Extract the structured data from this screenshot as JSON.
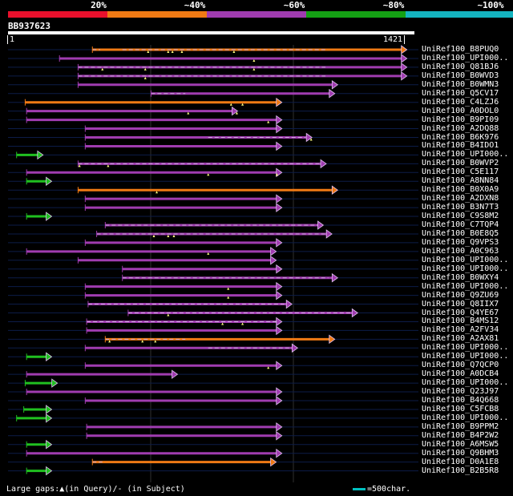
{
  "legend": {
    "labels": [
      "20%",
      "~40%",
      "~60%",
      "~80%",
      "~100%"
    ],
    "colors": [
      "#e8102c",
      "#f07a14",
      "#a03cb0",
      "#14a014",
      "#14b4c0"
    ]
  },
  "query": {
    "id": "BB937623",
    "start": "1",
    "end": "1421",
    "length": 1421
  },
  "hits": [
    {
      "label": "UniRef100_B8PUQ0",
      "color": "orange",
      "start": 295,
      "end": 1392,
      "gaps": [
        [
          295,
          322
        ],
        [
          400,
          1110
        ]
      ],
      "marks": [
        490,
        560,
        575,
        608,
        790
      ]
    },
    {
      "label": "UniRef100_UPI000..",
      "color": "purple",
      "start": 180,
      "end": 1392,
      "gaps": [],
      "marks": [
        860
      ]
    },
    {
      "label": "UniRef100_Q81BJ6",
      "color": "purple",
      "start": 245,
      "end": 1392,
      "gaps": [
        [
          245,
          1110
        ]
      ],
      "marks": [
        330,
        480,
        860
      ]
    },
    {
      "label": "UniRef100_B0WVD3",
      "color": "purple",
      "start": 245,
      "end": 1392,
      "gaps": [
        [
          245,
          1110
        ]
      ],
      "marks": [
        480
      ]
    },
    {
      "label": "UniRef100_B0WMN3",
      "color": "purple",
      "start": 245,
      "end": 1150,
      "gaps": [],
      "marks": []
    },
    {
      "label": "UniRef100_Q5CV17",
      "color": "purple",
      "start": 500,
      "end": 1140,
      "gaps": [
        [
          500,
          620
        ]
      ],
      "marks": []
    },
    {
      "label": "UniRef100_C4LZJ6",
      "color": "orange",
      "start": 60,
      "end": 955,
      "gaps": [],
      "marks": [
        780,
        820
      ]
    },
    {
      "label": "UniRef100_A0DOL0",
      "color": "purple",
      "start": 65,
      "end": 800,
      "gaps": [],
      "marks": [
        630,
        800
      ]
    },
    {
      "label": "UniRef100_B9PI09",
      "color": "purple",
      "start": 65,
      "end": 955,
      "gaps": [],
      "marks": [
        910
      ]
    },
    {
      "label": "UniRef100_A2DQ88",
      "color": "purple",
      "start": 270,
      "end": 955,
      "gaps": [],
      "marks": []
    },
    {
      "label": "UniRef100_B6K976",
      "color": "purple",
      "start": 270,
      "end": 1060,
      "gaps": [
        [
          700,
          1040
        ]
      ],
      "marks": [
        1060
      ]
    },
    {
      "label": "UniRef100_B4IDO1",
      "color": "purple",
      "start": 270,
      "end": 955,
      "gaps": [],
      "marks": []
    },
    {
      "label": "UniRef100_UPI000..",
      "color": "green",
      "start": 30,
      "end": 120,
      "gaps": [],
      "marks": []
    },
    {
      "label": "UniRef100_B0WVP2",
      "color": "purple",
      "start": 245,
      "end": 1110,
      "gaps": [
        [
          245,
          1110
        ]
      ],
      "marks": [
        250,
        350
      ]
    },
    {
      "label": "UniRef100_C5E117",
      "color": "purple",
      "start": 65,
      "end": 955,
      "gaps": [],
      "marks": [
        700,
        940
      ]
    },
    {
      "label": "UniRef100_A8NN84",
      "color": "green",
      "start": 65,
      "end": 150,
      "gaps": [],
      "marks": []
    },
    {
      "label": "UniRef100_B0X0A9",
      "color": "orange",
      "start": 245,
      "end": 1150,
      "gaps": [],
      "marks": [
        520
      ]
    },
    {
      "label": "UniRef100_A2DXN8",
      "color": "purple",
      "start": 270,
      "end": 955,
      "gaps": [],
      "marks": []
    },
    {
      "label": "UniRef100_B3N7T3",
      "color": "purple",
      "start": 270,
      "end": 955,
      "gaps": [],
      "marks": []
    },
    {
      "label": "UniRef100_C9S8M2",
      "color": "green",
      "start": 65,
      "end": 150,
      "gaps": [],
      "marks": []
    },
    {
      "label": "UniRef100_C7TQP4",
      "color": "purple",
      "start": 340,
      "end": 1100,
      "gaps": [
        [
          340,
          1100
        ]
      ],
      "marks": []
    },
    {
      "label": "UniRef100_B0E8Q5",
      "color": "purple",
      "start": 310,
      "end": 1130,
      "gaps": [
        [
          310,
          1130
        ]
      ],
      "marks": [
        510,
        560,
        580
      ]
    },
    {
      "label": "UniRef100_Q9VPS3",
      "color": "purple",
      "start": 270,
      "end": 955,
      "gaps": [],
      "marks": []
    },
    {
      "label": "UniRef100_A0C963",
      "color": "purple",
      "start": 65,
      "end": 935,
      "gaps": [],
      "marks": [
        700
      ]
    },
    {
      "label": "UniRef100_UPI000..",
      "color": "purple",
      "start": 245,
      "end": 935,
      "gaps": [],
      "marks": []
    },
    {
      "label": "UniRef100_UPI000..",
      "color": "purple",
      "start": 400,
      "end": 955,
      "gaps": [],
      "marks": []
    },
    {
      "label": "UniRef100_B0WXY4",
      "color": "purple",
      "start": 400,
      "end": 1150,
      "gaps": [
        [
          400,
          1120
        ]
      ],
      "marks": []
    },
    {
      "label": "UniRef100_UPI000..",
      "color": "purple",
      "start": 270,
      "end": 955,
      "gaps": [],
      "marks": [
        770
      ]
    },
    {
      "label": "UniRef100_Q9ZU69",
      "color": "purple",
      "start": 270,
      "end": 955,
      "gaps": [],
      "marks": [
        770
      ]
    },
    {
      "label": "UniRef100_Q8IIX7",
      "color": "purple",
      "start": 280,
      "end": 990,
      "gaps": [
        [
          280,
          990
        ]
      ],
      "marks": []
    },
    {
      "label": "UniRef100_Q4YE67",
      "color": "purple",
      "start": 420,
      "end": 1220,
      "gaps": [
        [
          420,
          1200
        ]
      ],
      "marks": [
        560
      ]
    },
    {
      "label": "UniRef100_B4MS12",
      "color": "purple",
      "start": 275,
      "end": 955,
      "gaps": [
        [
          275,
          955
        ]
      ],
      "marks": [
        750,
        820
      ]
    },
    {
      "label": "UniRef100_A2FV34",
      "color": "purple",
      "start": 275,
      "end": 955,
      "gaps": [],
      "marks": []
    },
    {
      "label": "UniRef100_A2AX81",
      "color": "orange",
      "start": 340,
      "end": 1140,
      "gaps": [
        [
          340,
          620
        ]
      ],
      "marks": [
        355,
        470,
        515
      ]
    },
    {
      "label": "UniRef100_UPI000..",
      "color": "purple",
      "start": 270,
      "end": 1010,
      "gaps": [
        [
          700,
          1010
        ]
      ],
      "marks": []
    },
    {
      "label": "UniRef100_UPI000..",
      "color": "green",
      "start": 65,
      "end": 150,
      "gaps": [],
      "marks": []
    },
    {
      "label": "UniRef100_Q7QCP0",
      "color": "purple",
      "start": 270,
      "end": 955,
      "gaps": [],
      "marks": [
        910
      ]
    },
    {
      "label": "UniRef100_A0DCB4",
      "color": "purple",
      "start": 65,
      "end": 590,
      "gaps": [],
      "marks": []
    },
    {
      "label": "UniRef100_UPI000..",
      "color": "green",
      "start": 60,
      "end": 170,
      "gaps": [],
      "marks": []
    },
    {
      "label": "UniRef100_Q23J97",
      "color": "purple",
      "start": 65,
      "end": 955,
      "gaps": [],
      "marks": []
    },
    {
      "label": "UniRef100_B4Q668",
      "color": "purple",
      "start": 270,
      "end": 955,
      "gaps": [],
      "marks": []
    },
    {
      "label": "UniRef100_C5FCB8",
      "color": "green",
      "start": 55,
      "end": 150,
      "gaps": [],
      "marks": []
    },
    {
      "label": "UniRef100_UPI000..",
      "color": "green",
      "start": 30,
      "end": 150,
      "gaps": [],
      "marks": []
    },
    {
      "label": "UniRef100_B9PPM2",
      "color": "purple",
      "start": 275,
      "end": 955,
      "gaps": [],
      "marks": []
    },
    {
      "label": "UniRef100_B4P2W2",
      "color": "purple",
      "start": 275,
      "end": 955,
      "gaps": [],
      "marks": []
    },
    {
      "label": "UniRef100_A6MSW5",
      "color": "green",
      "start": 65,
      "end": 150,
      "gaps": [],
      "marks": []
    },
    {
      "label": "UniRef100_Q9BHM3",
      "color": "purple",
      "start": 65,
      "end": 955,
      "gaps": [],
      "marks": []
    },
    {
      "label": "UniRef100_D0A1E8",
      "color": "orange",
      "start": 295,
      "end": 935,
      "gaps": [
        [
          295,
          330
        ]
      ],
      "marks": []
    },
    {
      "label": "UniRef100_B2B5R8",
      "color": "green",
      "start": 65,
      "end": 150,
      "gaps": [],
      "marks": []
    }
  ],
  "footer": {
    "prefix": "Large gaps:",
    "query_gap_symbol": "▲",
    "query_gap_text": "(in Query)/",
    "subject_gap_text": "- (in Subject)",
    "scale_text": "=500char."
  }
}
